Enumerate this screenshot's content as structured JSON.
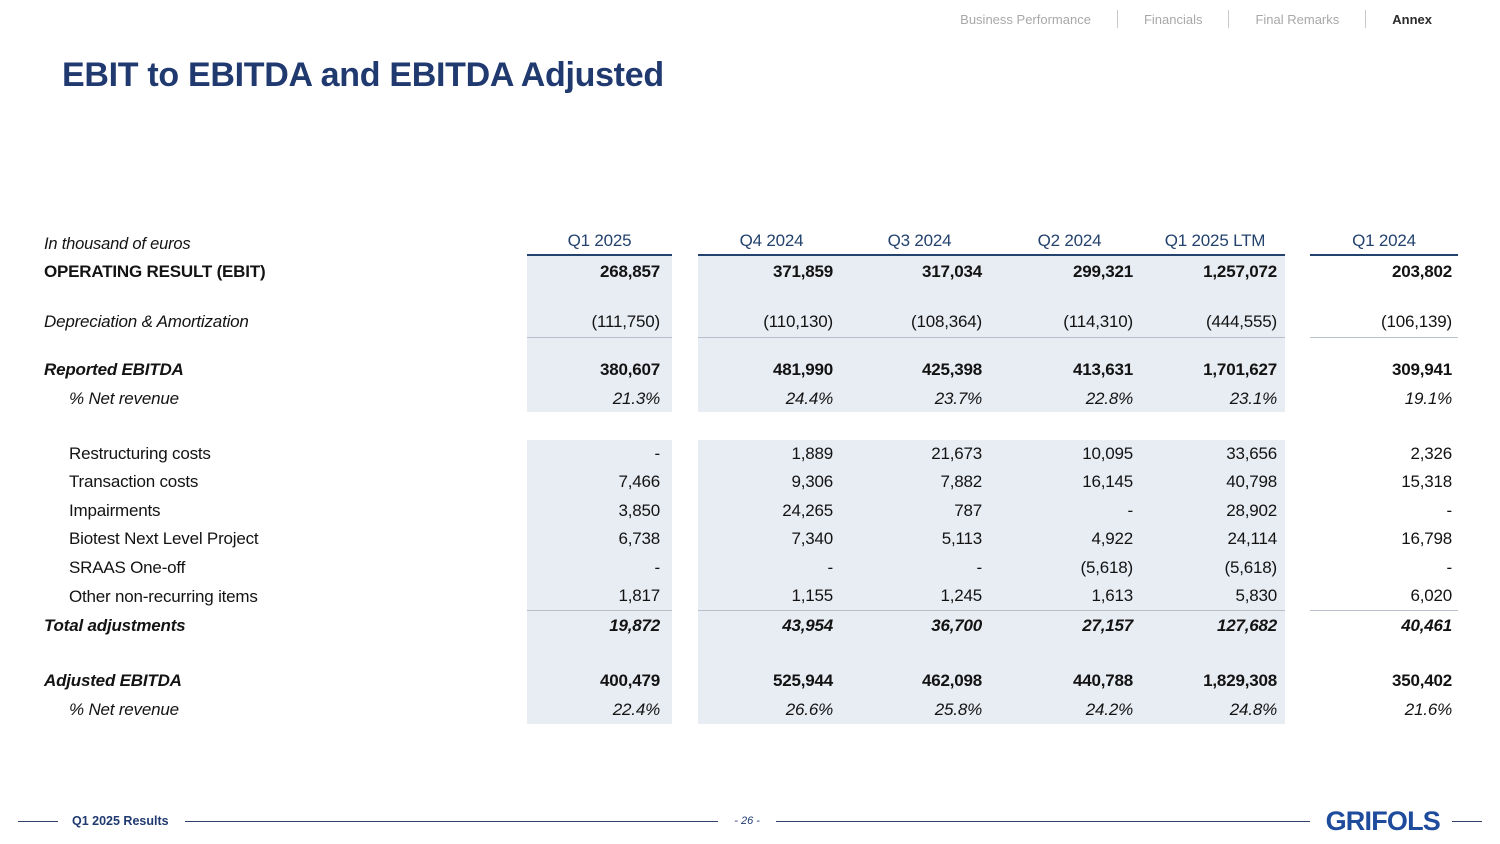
{
  "nav": {
    "items": [
      {
        "label": "Business Performance",
        "active": false
      },
      {
        "label": "Financials",
        "active": false
      },
      {
        "label": "Final Remarks",
        "active": false
      },
      {
        "label": "Annex",
        "active": true
      }
    ]
  },
  "title": "EBIT to EBITDA and EBITDA Adjusted",
  "table": {
    "unit_label": "In thousand of euros",
    "columns": [
      "Q1 2025",
      "Q4 2024",
      "Q3 2024",
      "Q2 2024",
      "Q1 2025 LTM",
      "Q1 2024"
    ],
    "rows": [
      {
        "style": "ebit",
        "label": "OPERATING RESULT (EBIT)",
        "values": [
          "268,857",
          "371,859",
          "317,034",
          "299,321",
          "1,257,072",
          "203,802"
        ]
      },
      {
        "style": "dna",
        "label": "Depreciation & Amortization",
        "values": [
          "(111,750)",
          "(110,130)",
          "(108,364)",
          "(114,310)",
          "(444,555)",
          "(106,139)"
        ]
      },
      {
        "style": "reported",
        "label": "Reported EBITDA",
        "values": [
          "380,607",
          "481,990",
          "425,398",
          "413,631",
          "1,701,627",
          "309,941"
        ]
      },
      {
        "style": "reported_pct",
        "label": "% Net revenue",
        "values": [
          "21.3%",
          "24.4%",
          "23.7%",
          "22.8%",
          "23.1%",
          "19.1%"
        ]
      },
      {
        "style": "restructuring",
        "label": "Restructuring costs",
        "values": [
          "-",
          "1,889",
          "21,673",
          "10,095",
          "33,656",
          "2,326"
        ]
      },
      {
        "style": "transaction",
        "label": "Transaction costs",
        "values": [
          "7,466",
          "9,306",
          "7,882",
          "16,145",
          "40,798",
          "15,318"
        ]
      },
      {
        "style": "impairments",
        "label": "Impairments",
        "values": [
          "3,850",
          "24,265",
          "787",
          "-",
          "28,902",
          "-"
        ]
      },
      {
        "style": "biotest",
        "label": "Biotest Next Level Project",
        "values": [
          "6,738",
          "7,340",
          "5,113",
          "4,922",
          "24,114",
          "16,798"
        ]
      },
      {
        "style": "sraas",
        "label": "SRAAS One-off",
        "values": [
          "-",
          "-",
          "-",
          "(5,618)",
          "(5,618)",
          "-"
        ]
      },
      {
        "style": "other",
        "label": "Other non-recurring items",
        "values": [
          "1,817",
          "1,155",
          "1,245",
          "1,613",
          "5,830",
          "6,020"
        ]
      },
      {
        "style": "total",
        "label": "Total adjustments",
        "values": [
          "19,872",
          "43,954",
          "36,700",
          "27,157",
          "127,682",
          "40,461"
        ]
      },
      {
        "style": "adjusted",
        "label": "Adjusted EBITDA",
        "values": [
          "400,479",
          "525,944",
          "462,098",
          "440,788",
          "1,829,308",
          "350,402"
        ]
      },
      {
        "style": "adjusted_pct",
        "label": "% Net revenue",
        "values": [
          "22.4%",
          "26.6%",
          "25.8%",
          "24.2%",
          "24.8%",
          "21.6%"
        ]
      }
    ]
  },
  "footer": {
    "results_label": "Q1 2025 Results",
    "page_number": "- 26 -",
    "logo_text": "GRIFOLS"
  },
  "colors": {
    "title_navy": "#203a70",
    "header_navy": "#24426e",
    "column_shading": "#e8ecf3",
    "logo_blue": "#1f4b9c",
    "nav_inactive_gray": "#a8a8a8"
  }
}
